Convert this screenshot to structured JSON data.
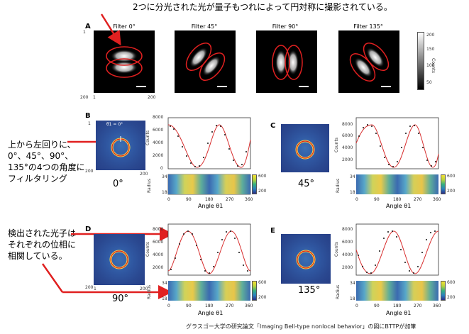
{
  "annotations": {
    "top": "2つに分光された光が量子もつれによって円対称に撮影されている。",
    "left1": [
      "上から左回りに、",
      "0°、45°、90°、",
      "135°の4つの角度に",
      "フィルタリング"
    ],
    "left2": [
      "検出された光子は",
      "それぞれの位相に",
      "相関している。"
    ]
  },
  "panels": {
    "A": "A",
    "B": "B",
    "C": "C",
    "D": "D",
    "E": "E"
  },
  "filters": [
    "Filter 0°",
    "Filter 45°",
    "Filter 90°",
    "Filter 135°"
  ],
  "filter_axis": {
    "min": "1",
    "max": "200"
  },
  "colorbar": {
    "label": "Counts",
    "ticks": [
      "200",
      "150",
      "100",
      "50"
    ]
  },
  "angles": {
    "b": "0°",
    "c": "45°",
    "d": "90°",
    "e": "135°",
    "theta_label": "θ1 = 0°"
  },
  "img_axis": {
    "one": "1",
    "max": "200"
  },
  "plot": {
    "ylabel": "Counts",
    "xlabel": "Angle θ1",
    "radius_label": "Radius",
    "radius_ticks": [
      "34",
      "18"
    ],
    "xticks": [
      "0",
      "90",
      "180",
      "270",
      "360"
    ],
    "yticks_b": [
      "8000",
      "6000",
      "4000",
      "2000",
      "0"
    ],
    "yticks_c": [
      "8000",
      "6000",
      "4000",
      "2000"
    ],
    "yticks_d": [
      "8000",
      "6000",
      "4000",
      "2000"
    ],
    "yticks_e": [
      "8000",
      "6000",
      "4000",
      "2000"
    ],
    "heat_ticks": [
      "600",
      "200"
    ]
  },
  "caption": "グラスゴー大学の研究論文「Imaging Bell-type nonlocal behavior」の図にBTTPが加筆",
  "colors": {
    "arrow": "#e02020",
    "fit": "#d83030",
    "dots": "#111111"
  }
}
